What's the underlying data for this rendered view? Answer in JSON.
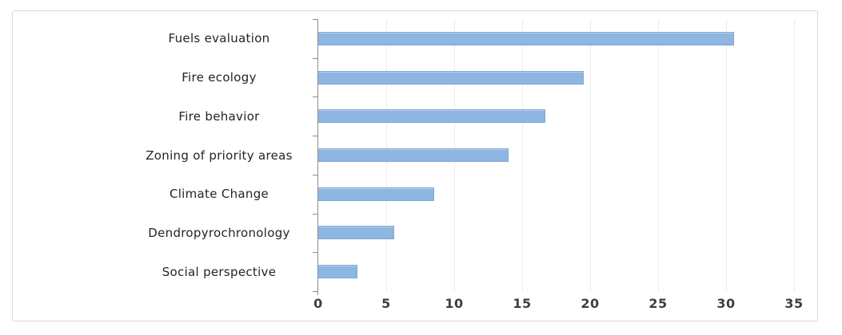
{
  "chart_data": {
    "type": "bar",
    "orientation": "horizontal",
    "title": "",
    "xlabel": "",
    "ylabel": "",
    "categories": [
      "Fuels evaluation",
      "Fire ecology",
      "Fire behavior",
      "Zoning of priority areas",
      "Climate Change",
      "Dendropyrochronology",
      "Social perspective"
    ],
    "values": [
      30.6,
      19.5,
      16.7,
      14,
      8.5,
      5.6,
      2.9
    ],
    "xlim": [
      0,
      35
    ],
    "x_ticks": [
      0,
      5,
      10,
      15,
      20,
      25,
      30,
      35
    ],
    "grid": "vertical-only",
    "legend": "none",
    "bar_color": "#8fb5e1",
    "bar_border_color": "#7fa8d2",
    "axis_line_color": "#8f8f8f",
    "gridline_color": "#ececec",
    "frame_border_color": "#d9d9d9",
    "category_label_color": "#242424",
    "tick_label_color": "#3f3f3f"
  }
}
